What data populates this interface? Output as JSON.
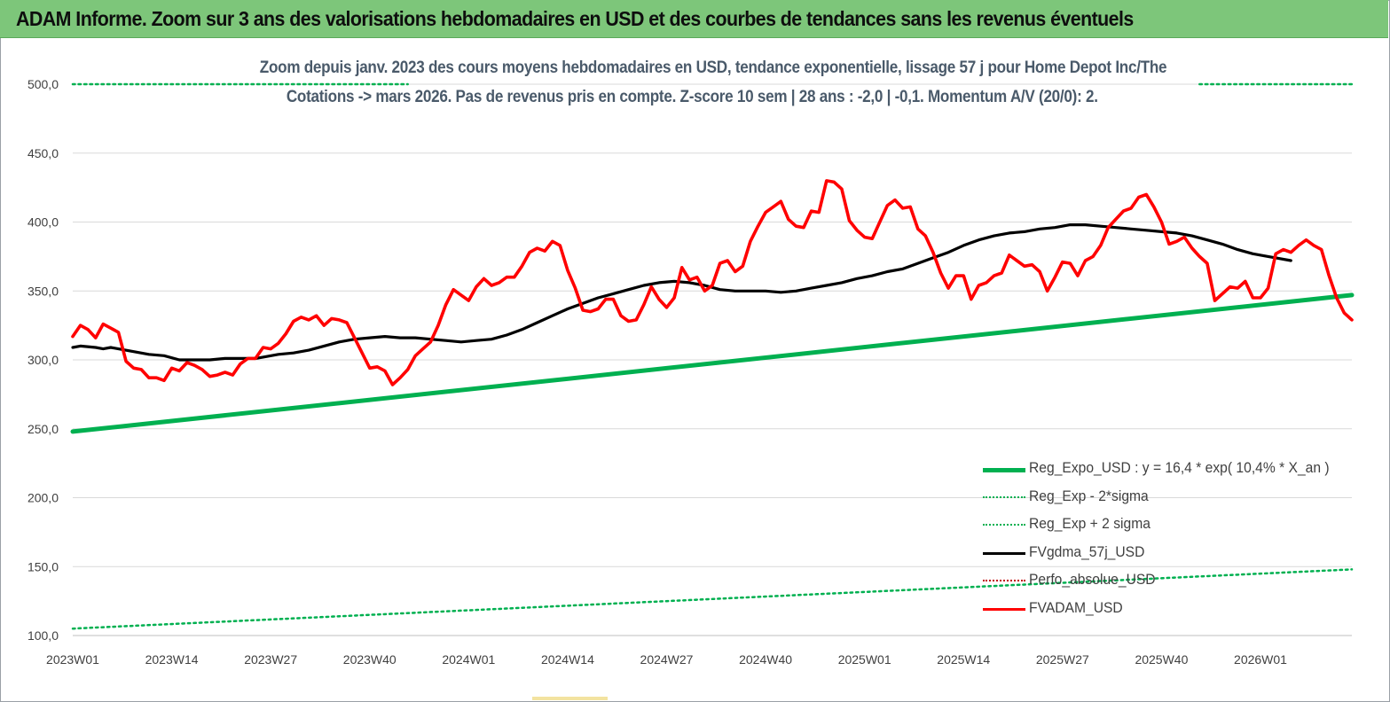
{
  "header": {
    "title": "ADAM Informe. Zoom sur 3 ans des valorisations hebdomadaires en USD et des courbes de tendances sans les revenus éventuels"
  },
  "colors": {
    "header_bg": "#7dc67a",
    "reg_expo": "#00b050",
    "fvgdma": "#000000",
    "fvadam": "#ff0000",
    "perfo": "#c00000"
  },
  "chart_data": {
    "type": "line",
    "title": "Zoom depuis janv. 2023 des cours moyens hebdomadaires en USD, tendance exponentielle, lissage 57 j pour Home Depot Inc/The",
    "subtitle": "Cotations -> mars 2026. Pas de revenus pris en  compte. Z-score 10 sem  | 28 ans : -2,0 | -0,1. Momentum A/V (20/0): 2.",
    "xlabel": "",
    "ylabel": "",
    "ylim": [
      100,
      500
    ],
    "yticks": [
      "500,0",
      "450,0",
      "400,0",
      "350,0",
      "300,0",
      "250,0",
      "200,0",
      "150,0",
      "100,0"
    ],
    "ytick_values": [
      500,
      450,
      400,
      350,
      300,
      250,
      200,
      150,
      100
    ],
    "xticks": [
      "2023W01",
      "2023W14",
      "2023W27",
      "2023W40",
      "2024W01",
      "2024W14",
      "2024W27",
      "2024W40",
      "2025W01",
      "2025W14",
      "2025W27",
      "2025W40",
      "2026W01"
    ],
    "week_count": 169,
    "grid": "horizontal",
    "legend_position": "bottom-right",
    "series": [
      {
        "name": "Reg_Expo_USD : y = 16,4 * exp( 10,4% *  X_an )",
        "style": "solid-thick",
        "color": "#00b050",
        "points": [
          [
            0,
            248
          ],
          [
            168,
            347
          ]
        ]
      },
      {
        "name": "Reg_Exp - 2*sigma",
        "style": "dotted",
        "color": "#00b050",
        "points": [
          [
            0,
            105
          ],
          [
            168,
            148
          ]
        ]
      },
      {
        "name": "Reg_Exp + 2 sigma",
        "style": "dotted",
        "color": "#00b050",
        "points": [
          [
            0,
            500
          ],
          [
            168,
            500
          ]
        ]
      },
      {
        "name": "FVgdma_57j_USD",
        "style": "solid",
        "color": "#000000",
        "points": [
          [
            0,
            309
          ],
          [
            1,
            310
          ],
          [
            3,
            309
          ],
          [
            4,
            308
          ],
          [
            5,
            309
          ],
          [
            6,
            308
          ],
          [
            8,
            306
          ],
          [
            10,
            304
          ],
          [
            12,
            303
          ],
          [
            14,
            300
          ],
          [
            16,
            300
          ],
          [
            18,
            300
          ],
          [
            20,
            301
          ],
          [
            22,
            301
          ],
          [
            24,
            301
          ],
          [
            25,
            302
          ],
          [
            27,
            304
          ],
          [
            29,
            305
          ],
          [
            31,
            307
          ],
          [
            33,
            310
          ],
          [
            35,
            313
          ],
          [
            37,
            315
          ],
          [
            39,
            316
          ],
          [
            41,
            317
          ],
          [
            43,
            316
          ],
          [
            45,
            316
          ],
          [
            47,
            315
          ],
          [
            49,
            314
          ],
          [
            51,
            313
          ],
          [
            53,
            314
          ],
          [
            55,
            315
          ],
          [
            57,
            318
          ],
          [
            59,
            322
          ],
          [
            61,
            327
          ],
          [
            63,
            332
          ],
          [
            65,
            337
          ],
          [
            67,
            341
          ],
          [
            69,
            345
          ],
          [
            71,
            348
          ],
          [
            73,
            351
          ],
          [
            75,
            354
          ],
          [
            77,
            356
          ],
          [
            79,
            357
          ],
          [
            81,
            356
          ],
          [
            83,
            354
          ],
          [
            85,
            351
          ],
          [
            87,
            350
          ],
          [
            89,
            350
          ],
          [
            91,
            350
          ],
          [
            93,
            349
          ],
          [
            95,
            350
          ],
          [
            97,
            352
          ],
          [
            99,
            354
          ],
          [
            101,
            356
          ],
          [
            103,
            359
          ],
          [
            105,
            361
          ],
          [
            107,
            364
          ],
          [
            109,
            366
          ],
          [
            111,
            370
          ],
          [
            113,
            374
          ],
          [
            115,
            378
          ],
          [
            117,
            383
          ],
          [
            119,
            387
          ],
          [
            121,
            390
          ],
          [
            123,
            392
          ],
          [
            125,
            393
          ],
          [
            127,
            395
          ],
          [
            129,
            396
          ],
          [
            131,
            398
          ],
          [
            133,
            398
          ],
          [
            135,
            397
          ],
          [
            137,
            396
          ],
          [
            139,
            395
          ],
          [
            141,
            394
          ],
          [
            143,
            393
          ],
          [
            145,
            392
          ],
          [
            147,
            390
          ],
          [
            149,
            387
          ],
          [
            151,
            384
          ],
          [
            153,
            380
          ],
          [
            155,
            377
          ],
          [
            157,
            375
          ],
          [
            158,
            374
          ],
          [
            160,
            372
          ]
        ]
      },
      {
        "name": "Perfo_absolue_USD",
        "style": "dotted",
        "color": "#c00000",
        "points": []
      },
      {
        "name": "FVADAM_USD",
        "style": "solid-thick",
        "color": "#ff0000",
        "points": [
          [
            0,
            317
          ],
          [
            1,
            325
          ],
          [
            2,
            322
          ],
          [
            3,
            316
          ],
          [
            4,
            326
          ],
          [
            5,
            323
          ],
          [
            6,
            320
          ],
          [
            7,
            299
          ],
          [
            8,
            294
          ],
          [
            9,
            293
          ],
          [
            10,
            287
          ],
          [
            11,
            287
          ],
          [
            12,
            285
          ],
          [
            13,
            294
          ],
          [
            14,
            292
          ],
          [
            15,
            298
          ],
          [
            16,
            296
          ],
          [
            17,
            293
          ],
          [
            18,
            288
          ],
          [
            19,
            289
          ],
          [
            20,
            291
          ],
          [
            21,
            289
          ],
          [
            22,
            297
          ],
          [
            23,
            301
          ],
          [
            24,
            301
          ],
          [
            25,
            309
          ],
          [
            26,
            308
          ],
          [
            27,
            312
          ],
          [
            28,
            319
          ],
          [
            29,
            328
          ],
          [
            30,
            331
          ],
          [
            31,
            329
          ],
          [
            32,
            332
          ],
          [
            33,
            325
          ],
          [
            34,
            330
          ],
          [
            35,
            329
          ],
          [
            36,
            327
          ],
          [
            37,
            316
          ],
          [
            38,
            305
          ],
          [
            39,
            294
          ],
          [
            40,
            295
          ],
          [
            41,
            292
          ],
          [
            42,
            282
          ],
          [
            43,
            287
          ],
          [
            44,
            293
          ],
          [
            45,
            303
          ],
          [
            46,
            308
          ],
          [
            47,
            313
          ],
          [
            48,
            325
          ],
          [
            49,
            340
          ],
          [
            50,
            351
          ],
          [
            51,
            347
          ],
          [
            52,
            343
          ],
          [
            53,
            353
          ],
          [
            54,
            359
          ],
          [
            55,
            354
          ],
          [
            56,
            356
          ],
          [
            57,
            360
          ],
          [
            58,
            360
          ],
          [
            59,
            368
          ],
          [
            60,
            378
          ],
          [
            61,
            381
          ],
          [
            62,
            379
          ],
          [
            63,
            386
          ],
          [
            64,
            383
          ],
          [
            65,
            365
          ],
          [
            66,
            352
          ],
          [
            67,
            336
          ],
          [
            68,
            335
          ],
          [
            69,
            337
          ],
          [
            70,
            344
          ],
          [
            71,
            344
          ],
          [
            72,
            332
          ],
          [
            73,
            328
          ],
          [
            74,
            329
          ],
          [
            75,
            340
          ],
          [
            76,
            353
          ],
          [
            77,
            344
          ],
          [
            78,
            338
          ],
          [
            79,
            345
          ],
          [
            80,
            367
          ],
          [
            81,
            358
          ],
          [
            82,
            360
          ],
          [
            83,
            350
          ],
          [
            84,
            354
          ],
          [
            85,
            370
          ],
          [
            86,
            372
          ],
          [
            87,
            364
          ],
          [
            88,
            368
          ],
          [
            89,
            386
          ],
          [
            90,
            397
          ],
          [
            91,
            407
          ],
          [
            92,
            411
          ],
          [
            93,
            415
          ],
          [
            94,
            402
          ],
          [
            95,
            397
          ],
          [
            96,
            396
          ],
          [
            97,
            408
          ],
          [
            98,
            407
          ],
          [
            99,
            430
          ],
          [
            100,
            429
          ],
          [
            101,
            424
          ],
          [
            102,
            401
          ],
          [
            103,
            394
          ],
          [
            104,
            389
          ],
          [
            105,
            388
          ],
          [
            106,
            400
          ],
          [
            107,
            412
          ],
          [
            108,
            416
          ],
          [
            109,
            410
          ],
          [
            110,
            411
          ],
          [
            111,
            395
          ],
          [
            112,
            390
          ],
          [
            113,
            378
          ],
          [
            114,
            363
          ],
          [
            115,
            352
          ],
          [
            116,
            361
          ],
          [
            117,
            361
          ],
          [
            118,
            344
          ],
          [
            119,
            354
          ],
          [
            120,
            356
          ],
          [
            121,
            361
          ],
          [
            122,
            363
          ],
          [
            123,
            376
          ],
          [
            124,
            372
          ],
          [
            125,
            368
          ],
          [
            126,
            369
          ],
          [
            127,
            364
          ],
          [
            128,
            350
          ],
          [
            129,
            360
          ],
          [
            130,
            371
          ],
          [
            131,
            370
          ],
          [
            132,
            361
          ],
          [
            133,
            372
          ],
          [
            134,
            375
          ],
          [
            135,
            383
          ],
          [
            136,
            396
          ],
          [
            137,
            402
          ],
          [
            138,
            408
          ],
          [
            139,
            410
          ],
          [
            140,
            418
          ],
          [
            141,
            420
          ],
          [
            142,
            411
          ],
          [
            143,
            400
          ],
          [
            144,
            384
          ],
          [
            145,
            386
          ],
          [
            146,
            389
          ],
          [
            147,
            381
          ],
          [
            148,
            375
          ],
          [
            149,
            370
          ],
          [
            150,
            343
          ],
          [
            151,
            348
          ],
          [
            152,
            353
          ],
          [
            153,
            352
          ],
          [
            154,
            357
          ],
          [
            155,
            345
          ],
          [
            156,
            345
          ],
          [
            157,
            352
          ],
          [
            158,
            377
          ],
          [
            159,
            380
          ],
          [
            160,
            378
          ],
          [
            161,
            383
          ],
          [
            162,
            387
          ],
          [
            163,
            383
          ],
          [
            164,
            380
          ],
          [
            165,
            361
          ],
          [
            166,
            345
          ],
          [
            167,
            334
          ],
          [
            168,
            329
          ]
        ]
      }
    ]
  }
}
